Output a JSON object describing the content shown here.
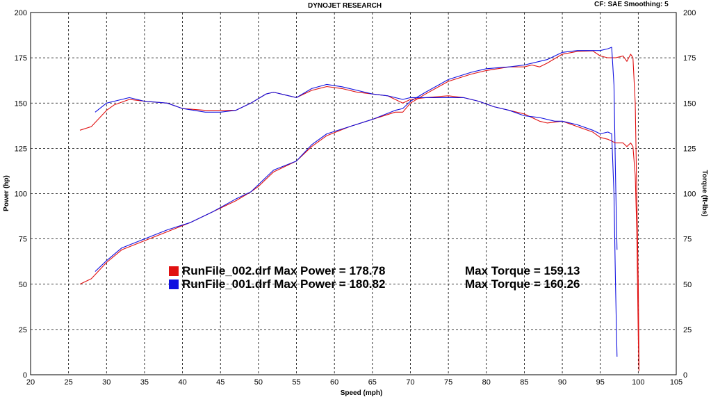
{
  "header": {
    "title": "DYNOJET RESEARCH",
    "cf_text": "CF: SAE  Smoothing: 5"
  },
  "legend": [
    {
      "power_text": "RunFile_002.drf Max Power = 178.78",
      "torque_text": "Max Torque = 159.13",
      "color": "#e01010"
    },
    {
      "power_text": "RunFile_001.drf Max Power = 180.82",
      "torque_text": "Max Torque = 160.26",
      "color": "#1010e0"
    }
  ],
  "chart_data": {
    "type": "line",
    "title": "DYNOJET RESEARCH",
    "xlabel": "Speed (mph)",
    "ylabel": "Power (hp)",
    "ylabel_right": "Torque (ft-lbs)",
    "xlim": [
      20,
      105
    ],
    "ylim": [
      0,
      200
    ],
    "ylim_right": [
      0,
      200
    ],
    "x_ticks": [
      20,
      25,
      30,
      35,
      40,
      45,
      50,
      55,
      60,
      65,
      70,
      75,
      80,
      85,
      90,
      95,
      100,
      105
    ],
    "y_ticks": [
      0,
      25,
      50,
      75,
      100,
      125,
      150,
      175,
      200
    ],
    "grid": true,
    "series": [
      {
        "color": "#e01010",
        "kind": "power",
        "points": [
          [
            26.5,
            50
          ],
          [
            28,
            53
          ],
          [
            30,
            62
          ],
          [
            32,
            69
          ],
          [
            35,
            74
          ],
          [
            38,
            79
          ],
          [
            41,
            84
          ],
          [
            44,
            90
          ],
          [
            47,
            96
          ],
          [
            49,
            101
          ],
          [
            50,
            104
          ],
          [
            52,
            112
          ],
          [
            55,
            118
          ],
          [
            57,
            126
          ],
          [
            59,
            132
          ],
          [
            62,
            137
          ],
          [
            65,
            141
          ],
          [
            68,
            145
          ],
          [
            69,
            145
          ],
          [
            70,
            150
          ],
          [
            72,
            155
          ],
          [
            75,
            162
          ],
          [
            78,
            166
          ],
          [
            80,
            168
          ],
          [
            83,
            170
          ],
          [
            85,
            170
          ],
          [
            86,
            171
          ],
          [
            87,
            170
          ],
          [
            88,
            172
          ],
          [
            90,
            177
          ],
          [
            92,
            178.5
          ],
          [
            94,
            178.8
          ],
          [
            95,
            176
          ],
          [
            96,
            175
          ],
          [
            97,
            175
          ],
          [
            98,
            176
          ],
          [
            98.5,
            173
          ],
          [
            99,
            177
          ],
          [
            99.3,
            175
          ],
          [
            99.6,
            150
          ],
          [
            99.8,
            100
          ],
          [
            100,
            50
          ],
          [
            100.1,
            5
          ]
        ]
      },
      {
        "color": "#1010e0",
        "kind": "power",
        "points": [
          [
            28.5,
            57
          ],
          [
            30,
            63
          ],
          [
            32,
            70
          ],
          [
            35,
            75
          ],
          [
            38,
            80
          ],
          [
            41,
            84
          ],
          [
            44,
            90
          ],
          [
            47,
            97
          ],
          [
            49,
            101
          ],
          [
            50,
            105
          ],
          [
            52,
            113
          ],
          [
            55,
            118
          ],
          [
            57,
            127
          ],
          [
            59,
            133
          ],
          [
            62,
            137
          ],
          [
            65,
            141
          ],
          [
            68,
            146
          ],
          [
            69,
            147
          ],
          [
            70,
            151
          ],
          [
            72,
            156
          ],
          [
            75,
            163
          ],
          [
            78,
            167
          ],
          [
            80,
            169
          ],
          [
            83,
            170
          ],
          [
            85,
            171
          ],
          [
            88,
            174
          ],
          [
            90,
            178
          ],
          [
            92,
            179
          ],
          [
            95,
            179
          ],
          [
            96,
            180
          ],
          [
            96.5,
            180.8
          ],
          [
            96.8,
            160
          ],
          [
            97,
            110
          ],
          [
            97.2,
            69
          ]
        ]
      },
      {
        "color": "#e01010",
        "kind": "torque",
        "points": [
          [
            26.5,
            135
          ],
          [
            28,
            137
          ],
          [
            30,
            146
          ],
          [
            31,
            149
          ],
          [
            33,
            152
          ],
          [
            35,
            151
          ],
          [
            38,
            150
          ],
          [
            40,
            147
          ],
          [
            43,
            146
          ],
          [
            45,
            146
          ],
          [
            47,
            146
          ],
          [
            49,
            150
          ],
          [
            51,
            155
          ],
          [
            52,
            156
          ],
          [
            54,
            154
          ],
          [
            55,
            153
          ],
          [
            57,
            157
          ],
          [
            59,
            159.1
          ],
          [
            61,
            158
          ],
          [
            63,
            156
          ],
          [
            65,
            155
          ],
          [
            67,
            154
          ],
          [
            68,
            152
          ],
          [
            69,
            150
          ],
          [
            70,
            152
          ],
          [
            72,
            153
          ],
          [
            75,
            154
          ],
          [
            77,
            153
          ],
          [
            79,
            151
          ],
          [
            81,
            148
          ],
          [
            83,
            146
          ],
          [
            85,
            144
          ],
          [
            87,
            140
          ],
          [
            88,
            139
          ],
          [
            90,
            140
          ],
          [
            92,
            137
          ],
          [
            94,
            134
          ],
          [
            95,
            131
          ],
          [
            96,
            130
          ],
          [
            97,
            128
          ],
          [
            98,
            128
          ],
          [
            98.5,
            126
          ],
          [
            99,
            128
          ],
          [
            99.3,
            126
          ],
          [
            99.6,
            110
          ],
          [
            99.8,
            80
          ],
          [
            100,
            20
          ],
          [
            100.1,
            2
          ]
        ]
      },
      {
        "color": "#1010e0",
        "kind": "torque",
        "points": [
          [
            28.5,
            145
          ],
          [
            30,
            150
          ],
          [
            32,
            152
          ],
          [
            33,
            153
          ],
          [
            35,
            151
          ],
          [
            38,
            150
          ],
          [
            40,
            147
          ],
          [
            43,
            145
          ],
          [
            45,
            145
          ],
          [
            47,
            146
          ],
          [
            49,
            150
          ],
          [
            51,
            155
          ],
          [
            52,
            156
          ],
          [
            54,
            154
          ],
          [
            55,
            153
          ],
          [
            57,
            158
          ],
          [
            59,
            160.3
          ],
          [
            61,
            159
          ],
          [
            63,
            157
          ],
          [
            65,
            155
          ],
          [
            67,
            154
          ],
          [
            68,
            153
          ],
          [
            69,
            152
          ],
          [
            70,
            153
          ],
          [
            72,
            153
          ],
          [
            75,
            153
          ],
          [
            77,
            153
          ],
          [
            79,
            151
          ],
          [
            81,
            148
          ],
          [
            83,
            146
          ],
          [
            85,
            143
          ],
          [
            87,
            142
          ],
          [
            89,
            140
          ],
          [
            90,
            140
          ],
          [
            92,
            138
          ],
          [
            94,
            135
          ],
          [
            95,
            133
          ],
          [
            96,
            134
          ],
          [
            96.5,
            133
          ],
          [
            96.8,
            100
          ],
          [
            97,
            50
          ],
          [
            97.2,
            10
          ]
        ]
      }
    ]
  }
}
